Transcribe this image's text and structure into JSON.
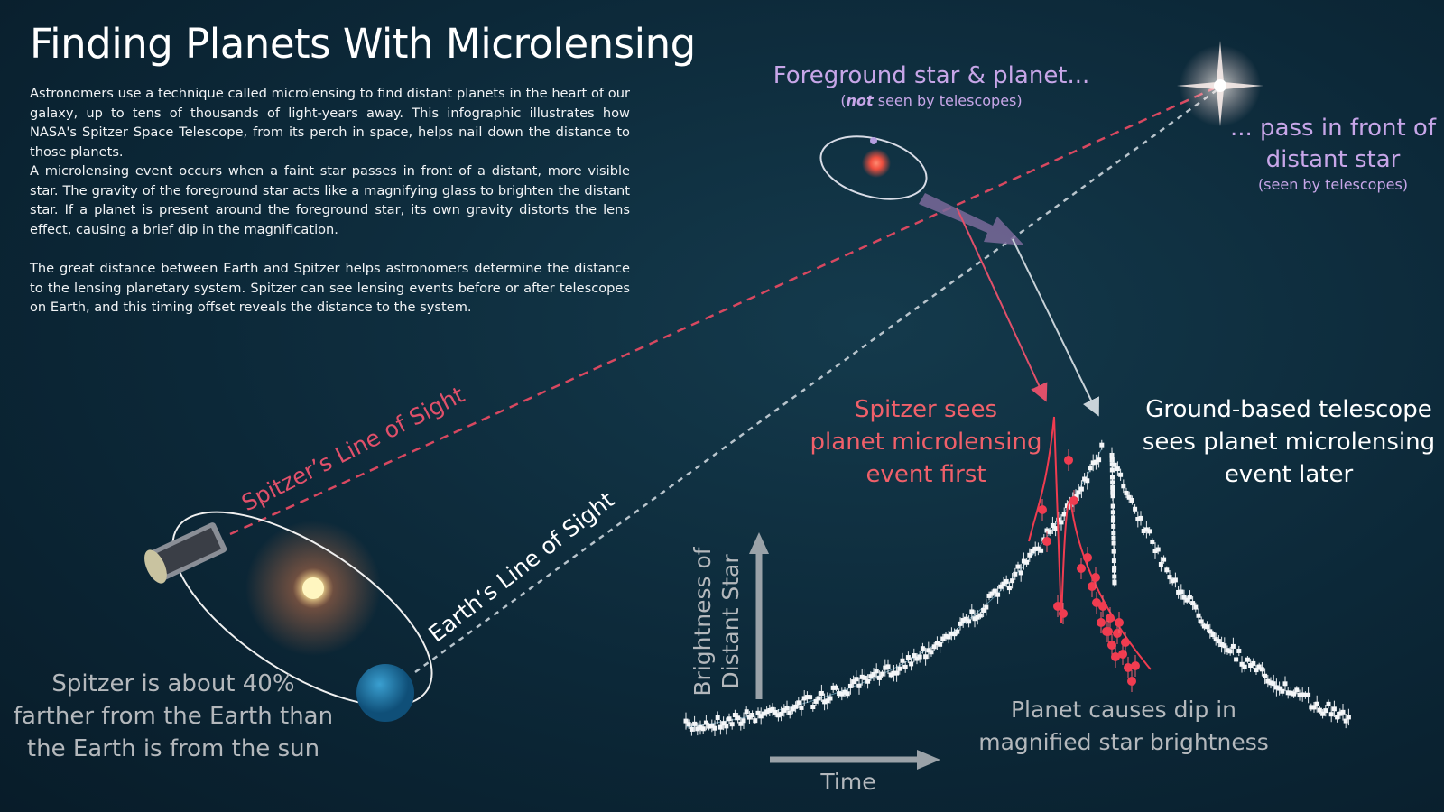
{
  "title": "Finding Planets With Microlensing",
  "intro": [
    "Astronomers use a technique called microlensing to find distant planets in the heart of our galaxy, up to tens of thousands of light-years away. This infographic illustrates how NASA's Spitzer Space Telescope, from its perch in space, helps nail down the distance to those planets.",
    "A microlensing event occurs when a faint star passes in front of a distant, more visible star. The gravity of the foreground star acts like a magnifying glass to brighten the distant star. If a planet is present around the foreground star, its own gravity distorts the lens effect, causing a brief  dip in the magnification.",
    "The great distance between Earth and Spitzer helps astronomers determine the distance to the lensing planetary system. Spitzer can see lensing events before or after telescopes on Earth, and this timing offset reveals the distance to the system."
  ],
  "foreground": {
    "title": "Foreground star & planet...",
    "note": [
      "(",
      "not",
      " seen by telescopes)"
    ]
  },
  "distant": {
    "lines": [
      "... pass in front of",
      "distant star"
    ],
    "note": "(seen by telescopes)"
  },
  "spitzer_event": [
    "Spitzer sees",
    "planet microlensing",
    "event first"
  ],
  "ground_event": [
    "Ground-based telescope",
    "sees planet microlensing",
    "event later"
  ],
  "spitzer_sight": "Spitzer’s Line of Sight",
  "earth_sight": "Earth’s Line of Sight",
  "distance_note": [
    "Spitzer is about 40%",
    "farther from the Earth than",
    "the Earth is from the sun"
  ],
  "y_axis": [
    "Brightness of",
    "Distant Star"
  ],
  "x_axis": "Time",
  "dip_note": [
    "Planet causes dip in",
    "magnified star brightness"
  ]
}
